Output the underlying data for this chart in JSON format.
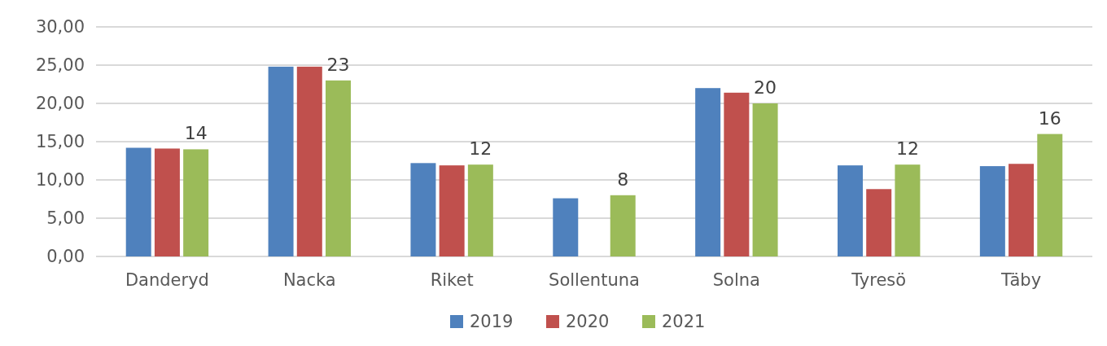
{
  "chart_data": {
    "type": "bar",
    "categories": [
      "Danderyd",
      "Nacka",
      "Riket",
      "Sollentuna",
      "Solna",
      "Tyresö",
      "Täby"
    ],
    "series": [
      {
        "name": "2019",
        "color": "#4f81bd",
        "values": [
          14.2,
          24.8,
          12.2,
          7.6,
          22.0,
          11.9,
          11.8
        ]
      },
      {
        "name": "2020",
        "color": "#c0504d",
        "values": [
          14.1,
          24.8,
          11.9,
          null,
          21.4,
          8.8,
          12.1
        ]
      },
      {
        "name": "2021",
        "color": "#9bbb59",
        "values": [
          14,
          23,
          12,
          8,
          20,
          12,
          16
        ],
        "value_labels": [
          "14",
          "23",
          "12",
          "8",
          "20",
          "12",
          "16"
        ]
      }
    ],
    "ylim": [
      0,
      30
    ],
    "yticks": [
      {
        "value": 0,
        "label": "0,00"
      },
      {
        "value": 5,
        "label": "5,00"
      },
      {
        "value": 10,
        "label": "10,00"
      },
      {
        "value": 15,
        "label": "15,00"
      },
      {
        "value": 20,
        "label": "20,00"
      },
      {
        "value": 25,
        "label": "25,00"
      },
      {
        "value": 30,
        "label": "30,00"
      }
    ],
    "grid": "y",
    "legend": "bottom"
  }
}
